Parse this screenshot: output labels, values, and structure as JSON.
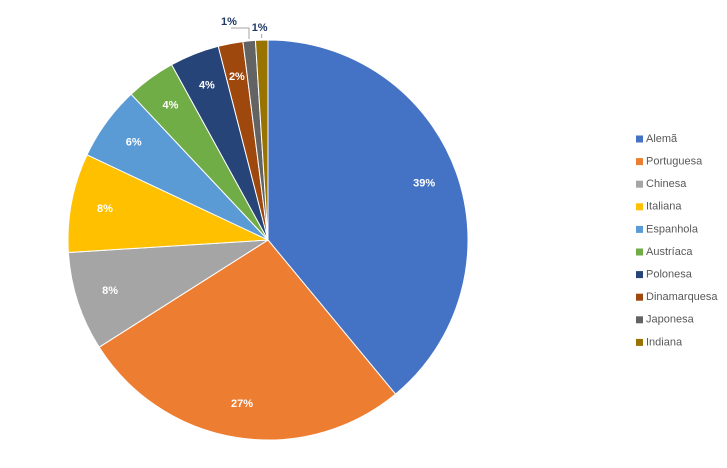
{
  "chart_data": {
    "type": "pie",
    "categories": [
      "Alemã",
      "Portuguesa",
      "Chinesa",
      "Italiana",
      "Espanhola",
      "Austríaca",
      "Polonesa",
      "Dinamarquesa",
      "Japonesa",
      "Indiana"
    ],
    "values": [
      39,
      27,
      8,
      8,
      6,
      4,
      4,
      2,
      1,
      1
    ],
    "value_labels": [
      "39%",
      "27%",
      "8%",
      "8%",
      "6%",
      "4%",
      "4%",
      "2%",
      "1%",
      "1%"
    ],
    "colors": [
      "#4472c4",
      "#ed7d31",
      "#a5a5a5",
      "#ffc000",
      "#5b9bd5",
      "#70ad47",
      "#264478",
      "#9e480e",
      "#636363",
      "#997300"
    ],
    "legend": "right"
  }
}
